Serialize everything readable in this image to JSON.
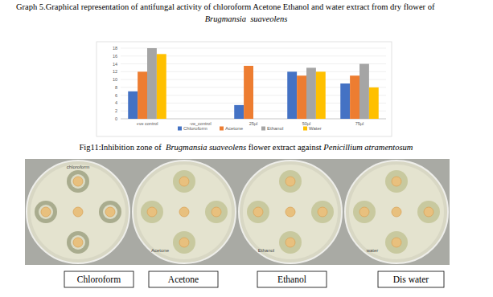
{
  "caption": {
    "text": "Graph 5.Graphical representation of antifungal activity of chloroform Acetone Ethanol and water extract from dry flower of",
    "species": "Brugmansia  suaveolens"
  },
  "chart_data": {
    "type": "bar",
    "categories": [
      "+ve control",
      "-ve_control",
      "25µl",
      "50µl",
      "75µl"
    ],
    "series": [
      {
        "name": "Chloroform",
        "color": "#4472c4",
        "values": [
          7,
          0,
          3.5,
          12,
          9
        ]
      },
      {
        "name": "Acetone",
        "color": "#ed7d31",
        "values": [
          12,
          0,
          13.5,
          11,
          11
        ]
      },
      {
        "name": "Ethanol",
        "color": "#a5a5a5",
        "values": [
          18,
          0,
          0,
          13,
          14
        ]
      },
      {
        "name": "Water",
        "color": "#ffc000",
        "values": [
          16.5,
          0,
          0,
          12,
          8
        ]
      }
    ],
    "ylim": [
      0,
      18
    ],
    "yticks": [
      0,
      2,
      4,
      6,
      8,
      10,
      12,
      14,
      16,
      18
    ],
    "grid": true,
    "legend": "bottom"
  },
  "figure": {
    "caption": [
      {
        "text": "Fig11:Inhibition zone of  ",
        "style": "normal"
      },
      {
        "text": "Brugmansia suaveolens",
        "style": "italic"
      },
      {
        "text": " flower extract against ",
        "style": "normal"
      },
      {
        "text": "Penicillium atramentosum",
        "style": "italic"
      }
    ],
    "plates": [
      {
        "label": "Chloroform",
        "inscription": "chloroform"
      },
      {
        "label": "Acetone",
        "inscription": "Acetone"
      },
      {
        "label": "Ethanol",
        "inscription": "Ethanol"
      },
      {
        "label": "Dis water",
        "inscription": "water"
      }
    ]
  }
}
